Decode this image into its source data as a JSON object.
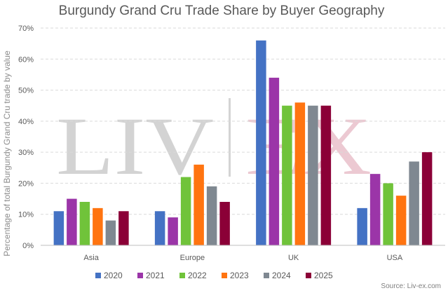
{
  "watermark": {
    "left": "LIV",
    "right": "EX",
    "left_color": "#c9c9c9",
    "right_color": "#e6b8c4"
  },
  "chart_data": {
    "type": "bar",
    "title": "Burgundy Grand Cru Trade Share by Buyer Geography",
    "ylabel": "Percentage of total Burgundy Grand Cru trade by value",
    "xlabel": "",
    "ylim": [
      0,
      70
    ],
    "yticks": [
      "0%",
      "10%",
      "20%",
      "30%",
      "40%",
      "50%",
      "60%",
      "70%"
    ],
    "grid": true,
    "legend_position": "bottom",
    "categories": [
      "Asia",
      "Europe",
      "UK",
      "USA"
    ],
    "series": [
      {
        "name": "2020",
        "color": "#4472c4",
        "values": [
          11,
          11,
          66,
          12
        ]
      },
      {
        "name": "2021",
        "color": "#9b35a8",
        "values": [
          15,
          9,
          54,
          23
        ]
      },
      {
        "name": "2022",
        "color": "#70c33a",
        "values": [
          14,
          22,
          45,
          20
        ]
      },
      {
        "name": "2023",
        "color": "#ff7410",
        "values": [
          12,
          26,
          46,
          16
        ]
      },
      {
        "name": "2024",
        "color": "#7f8891",
        "values": [
          8,
          19,
          45,
          27
        ]
      },
      {
        "name": "2025",
        "color": "#8b0037",
        "values": [
          11,
          14,
          45,
          30
        ]
      }
    ],
    "source": "Source: Liv-ex.com"
  }
}
